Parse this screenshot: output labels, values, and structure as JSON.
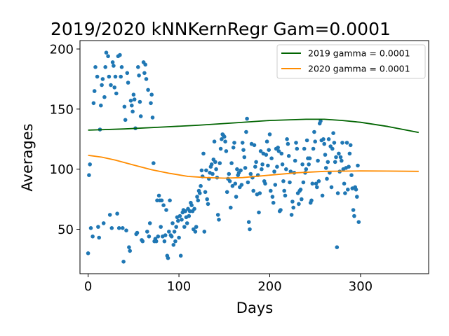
{
  "chart_data": {
    "type": "scatter",
    "title": "2019/2020 kNNKernRegr Gam=0.0001",
    "xlabel": "Days",
    "ylabel": "Averages",
    "xlim": [
      -9,
      375
    ],
    "ylim": [
      13,
      207
    ],
    "xticks": [
      0,
      100,
      200,
      300
    ],
    "yticks": [
      50,
      100,
      150,
      200
    ],
    "grid": false,
    "legend_position": "top-right",
    "legend": [
      {
        "label": "2019 gamma = 0.0001",
        "color": "#006400"
      },
      {
        "label": "2020 gamma = 0.0001",
        "color": "#ff8c00"
      }
    ],
    "lines": [
      {
        "name": "2019 gamma = 0.0001",
        "color": "#006400",
        "x": [
          0,
          40,
          80,
          120,
          160,
          200,
          240,
          260,
          280,
          300,
          330,
          364
        ],
        "y": [
          132.5,
          133.5,
          135,
          136.5,
          138.5,
          140.5,
          141.5,
          141.5,
          140.5,
          139,
          135.5,
          130.5
        ]
      },
      {
        "name": "2020 gamma = 0.0001",
        "color": "#ff8c00",
        "x": [
          0,
          15,
          30,
          50,
          70,
          90,
          110,
          130,
          150,
          170,
          200,
          230,
          260,
          300,
          330,
          364
        ],
        "y": [
          111.5,
          110,
          107.5,
          103.5,
          99.5,
          96.5,
          94,
          93,
          92.5,
          93,
          95,
          97,
          98.2,
          98.5,
          98.4,
          98.2
        ]
      }
    ],
    "scatter": {
      "color": "#1f77b4",
      "points": [
        [
          0,
          30
        ],
        [
          1,
          95
        ],
        [
          2,
          104
        ],
        [
          3,
          51
        ],
        [
          5,
          44
        ],
        [
          6,
          155
        ],
        [
          7,
          165
        ],
        [
          8,
          185
        ],
        [
          10,
          177
        ],
        [
          11,
          52
        ],
        [
          12,
          43
        ],
        [
          13,
          133
        ],
        [
          14,
          153
        ],
        [
          15,
          170
        ],
        [
          16,
          175
        ],
        [
          17,
          55
        ],
        [
          18,
          160
        ],
        [
          19,
          185
        ],
        [
          20,
          197
        ],
        [
          22,
          194
        ],
        [
          23,
          177
        ],
        [
          24,
          62
        ],
        [
          25,
          170
        ],
        [
          26,
          51
        ],
        [
          27,
          189
        ],
        [
          28,
          186
        ],
        [
          29,
          168
        ],
        [
          30,
          177
        ],
        [
          31,
          163
        ],
        [
          32,
          63
        ],
        [
          33,
          194
        ],
        [
          34,
          51
        ],
        [
          35,
          195
        ],
        [
          36,
          177
        ],
        [
          37,
          185
        ],
        [
          38,
          51
        ],
        [
          39,
          23
        ],
        [
          40,
          152
        ],
        [
          41,
          141
        ],
        [
          42,
          49
        ],
        [
          43,
          180
        ],
        [
          44,
          172
        ],
        [
          45,
          35
        ],
        [
          46,
          32
        ],
        [
          47,
          157
        ],
        [
          48,
          153
        ],
        [
          49,
          148
        ],
        [
          50,
          162
        ],
        [
          51,
          158
        ],
        [
          52,
          134
        ],
        [
          53,
          46
        ],
        [
          54,
          47
        ],
        [
          55,
          185
        ],
        [
          56,
          178
        ],
        [
          57,
          156
        ],
        [
          58,
          144
        ],
        [
          59,
          41
        ],
        [
          60,
          40
        ],
        [
          61,
          189
        ],
        [
          62,
          180
        ],
        [
          63,
          187
        ],
        [
          64,
          175
        ],
        [
          65,
          48
        ],
        [
          66,
          166
        ],
        [
          67,
          44
        ],
        [
          68,
          55
        ],
        [
          69,
          155
        ],
        [
          70,
          162
        ],
        [
          71,
          143
        ],
        [
          72,
          105
        ],
        [
          73,
          40
        ],
        [
          74,
          42
        ],
        [
          75,
          40
        ],
        [
          76,
          74
        ],
        [
          77,
          44
        ],
        [
          78,
          78
        ],
        [
          79,
          74
        ],
        [
          80,
          52
        ],
        [
          81,
          74
        ],
        [
          82,
          44
        ],
        [
          83,
          70
        ],
        [
          84,
          40
        ],
        [
          85,
          45
        ],
        [
          86,
          66
        ],
        [
          87,
          28
        ],
        [
          88,
          26
        ],
        [
          89,
          48
        ],
        [
          90,
          74
        ],
        [
          91,
          45
        ],
        [
          92,
          44
        ],
        [
          93,
          55
        ],
        [
          94,
          37
        ],
        [
          95,
          48
        ],
        [
          96,
          40
        ],
        [
          97,
          52
        ],
        [
          98,
          60
        ],
        [
          99,
          57
        ],
        [
          100,
          43
        ],
        [
          101,
          61
        ],
        [
          102,
          28
        ],
        [
          103,
          58
        ],
        [
          104,
          64
        ],
        [
          105,
          66
        ],
        [
          106,
          52
        ],
        [
          107,
          65
        ],
        [
          108,
          60
        ],
        [
          109,
          55
        ],
        [
          110,
          67
        ],
        [
          111,
          61
        ],
        [
          112,
          65
        ],
        [
          113,
          72
        ],
        [
          114,
          70
        ],
        [
          115,
          65
        ],
        [
          116,
          50
        ],
        [
          117,
          67
        ],
        [
          118,
          48
        ],
        [
          119,
          52
        ],
        [
          120,
          77
        ],
        [
          121,
          74
        ],
        [
          122,
          82
        ],
        [
          123,
          80
        ],
        [
          124,
          86
        ],
        [
          125,
          99
        ],
        [
          126,
          94
        ],
        [
          127,
          113
        ],
        [
          128,
          48
        ],
        [
          129,
          81
        ],
        [
          130,
          99
        ],
        [
          131,
          75
        ],
        [
          132,
          71
        ],
        [
          133,
          92
        ],
        [
          134,
          97
        ],
        [
          135,
          102
        ],
        [
          136,
          104
        ],
        [
          137,
          96
        ],
        [
          138,
          108
        ],
        [
          139,
          123
        ],
        [
          140,
          106
        ],
        [
          141,
          100
        ],
        [
          142,
          93
        ],
        [
          143,
          62
        ],
        [
          144,
          58
        ],
        [
          145,
          105
        ],
        [
          146,
          117
        ],
        [
          147,
          125
        ],
        [
          148,
          129
        ],
        [
          149,
          128
        ],
        [
          150,
          127
        ],
        [
          151,
          123
        ],
        [
          152,
          115
        ],
        [
          153,
          81
        ],
        [
          154,
          92
        ],
        [
          155,
          96
        ],
        [
          156,
          90
        ],
        [
          157,
          68
        ],
        [
          158,
          105
        ],
        [
          159,
          86
        ],
        [
          160,
          118
        ],
        [
          161,
          122
        ],
        [
          162,
          88
        ],
        [
          163,
          77
        ],
        [
          164,
          100
        ],
        [
          165,
          95
        ],
        [
          166,
          97
        ],
        [
          167,
          85
        ],
        [
          168,
          99
        ],
        [
          169,
          87
        ],
        [
          170,
          122
        ],
        [
          171,
          116
        ],
        [
          172,
          110
        ],
        [
          173,
          101
        ],
        [
          174,
          131
        ],
        [
          175,
          142
        ],
        [
          176,
          89
        ],
        [
          177,
          56
        ],
        [
          178,
          50
        ],
        [
          179,
          96
        ],
        [
          180,
          121
        ],
        [
          181,
          93
        ],
        [
          182,
          82
        ],
        [
          183,
          120
        ],
        [
          184,
          102
        ],
        [
          185,
          106
        ],
        [
          186,
          79
        ],
        [
          187,
          95
        ],
        [
          188,
          64
        ],
        [
          189,
          80
        ],
        [
          190,
          115
        ],
        [
          191,
          100
        ],
        [
          192,
          104
        ],
        [
          193,
          113
        ],
        [
          194,
          90
        ],
        [
          195,
          88
        ],
        [
          196,
          112
        ],
        [
          197,
          123
        ],
        [
          198,
          103
        ],
        [
          199,
          116
        ],
        [
          200,
          129
        ],
        [
          201,
          82
        ],
        [
          202,
          109
        ],
        [
          203,
          77
        ],
        [
          204,
          72
        ],
        [
          205,
          98
        ],
        [
          206,
          87
        ],
        [
          207,
          117
        ],
        [
          208,
          102
        ],
        [
          209,
          118
        ],
        [
          210,
          115
        ],
        [
          211,
          65
        ],
        [
          212,
          66
        ],
        [
          213,
          113
        ],
        [
          214,
          104
        ],
        [
          215,
          90
        ],
        [
          216,
          82
        ],
        [
          217,
          78
        ],
        [
          218,
          100
        ],
        [
          219,
          125
        ],
        [
          220,
          121
        ],
        [
          221,
          111
        ],
        [
          222,
          89
        ],
        [
          223,
          98
        ],
        [
          224,
          62
        ],
        [
          225,
          73
        ],
        [
          226,
          68
        ],
        [
          227,
          97
        ],
        [
          228,
          107
        ],
        [
          229,
          122
        ],
        [
          230,
          117
        ],
        [
          231,
          80
        ],
        [
          232,
          71
        ],
        [
          233,
          82
        ],
        [
          234,
          83
        ],
        [
          235,
          75
        ],
        [
          236,
          104
        ],
        [
          237,
          89
        ],
        [
          238,
          117
        ],
        [
          239,
          97
        ],
        [
          240,
          100
        ],
        [
          241,
          124
        ],
        [
          242,
          109
        ],
        [
          243,
          104
        ],
        [
          244,
          109
        ],
        [
          245,
          72
        ],
        [
          246,
          74
        ],
        [
          247,
          88
        ],
        [
          248,
          117
        ],
        [
          249,
          131
        ],
        [
          250,
          123
        ],
        [
          251,
          88
        ],
        [
          252,
          85
        ],
        [
          253,
          107
        ],
        [
          254,
          90
        ],
        [
          255,
          138
        ],
        [
          256,
          140
        ],
        [
          257,
          124
        ],
        [
          258,
          78
        ],
        [
          259,
          125
        ],
        [
          260,
          121
        ],
        [
          261,
          112
        ],
        [
          262,
          101
        ],
        [
          263,
          92
        ],
        [
          264,
          106
        ],
        [
          265,
          125
        ],
        [
          266,
          97
        ],
        [
          267,
          119
        ],
        [
          268,
          85
        ],
        [
          269,
          117
        ],
        [
          270,
          130
        ],
        [
          271,
          122
        ],
        [
          272,
          106
        ],
        [
          273,
          110
        ],
        [
          274,
          35
        ],
        [
          275,
          80
        ],
        [
          276,
          113
        ],
        [
          277,
          98
        ],
        [
          278,
          110
        ],
        [
          279,
          107
        ],
        [
          280,
          122
        ],
        [
          281,
          100
        ],
        [
          282,
          88
        ],
        [
          283,
          80
        ],
        [
          284,
          101
        ],
        [
          285,
          122
        ],
        [
          286,
          83
        ],
        [
          287,
          102
        ],
        [
          288,
          113
        ],
        [
          289,
          120
        ],
        [
          290,
          95
        ],
        [
          291,
          84
        ],
        [
          292,
          66
        ],
        [
          293,
          61
        ],
        [
          294,
          85
        ],
        [
          295,
          83
        ],
        [
          296,
          77
        ],
        [
          297,
          103
        ],
        [
          298,
          56
        ]
      ]
    }
  }
}
